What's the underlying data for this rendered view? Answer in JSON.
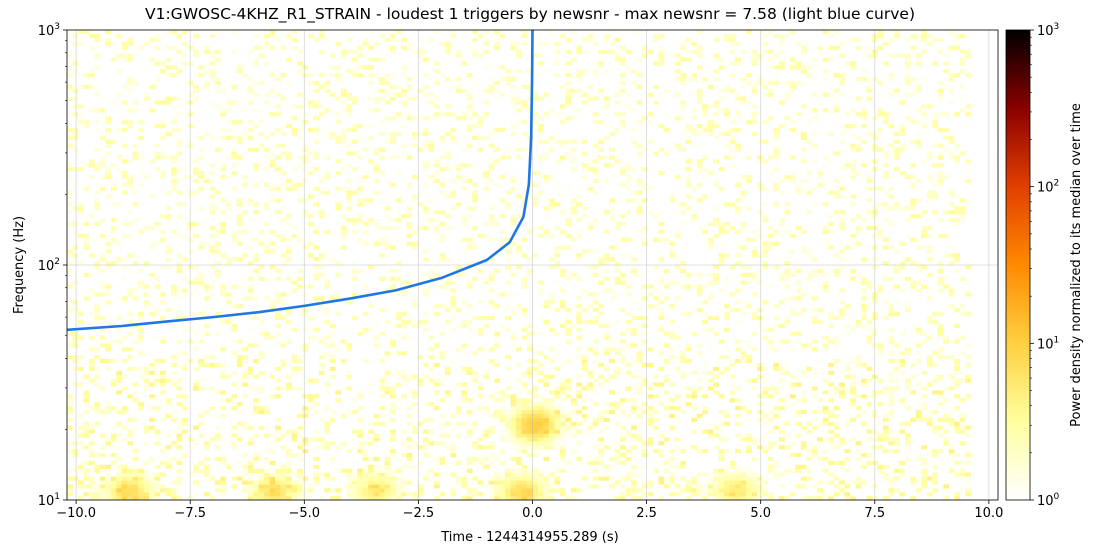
{
  "chart_data": {
    "type": "heatmap",
    "title": "V1:GWOSC-4KHZ_R1_STRAIN - loudest 1 triggers by newsnr - max newsnr = 7.58 (light blue curve)",
    "xlabel": "Time - 1244314955.289 (s)",
    "ylabel": "Frequency (Hz)",
    "xlim": [
      -10.2,
      10.2
    ],
    "ylim": [
      10,
      1000
    ],
    "yscale": "log",
    "x_ticks": [
      -10.0,
      -7.5,
      -5.0,
      -2.5,
      0.0,
      2.5,
      5.0,
      7.5,
      10.0
    ],
    "x_tick_labels": [
      "−10.0",
      "−7.5",
      "−5.0",
      "−2.5",
      "0.0",
      "2.5",
      "5.0",
      "7.5",
      "10.0"
    ],
    "y_ticks": [
      10,
      100,
      1000
    ],
    "y_tick_labels": [
      {
        "base": "10",
        "exp": "1"
      },
      {
        "base": "10",
        "exp": "2"
      },
      {
        "base": "10",
        "exp": "3"
      }
    ],
    "grid": true,
    "heatmap_extent": {
      "x": [
        -10.2,
        9.5
      ],
      "y": [
        10,
        1000
      ]
    },
    "colorbar": {
      "label": "Power density normalized to its median over time",
      "scale": "log",
      "range": [
        1,
        1000
      ],
      "ticks": [
        1,
        10,
        100,
        1000
      ],
      "tick_labels": [
        {
          "base": "10",
          "exp": "0"
        },
        {
          "base": "10",
          "exp": "1"
        },
        {
          "base": "10",
          "exp": "2"
        },
        {
          "base": "10",
          "exp": "3"
        }
      ],
      "colormap": [
        "#ffffff",
        "#ffffa0",
        "#ffd040",
        "#ff8a00",
        "#e04000",
        "#8a0000",
        "#000000"
      ]
    },
    "hotspots": [
      {
        "t": -8.9,
        "f": 10.8,
        "power": 6
      },
      {
        "t": -5.7,
        "f": 10.8,
        "power": 5
      },
      {
        "t": -3.5,
        "f": 11,
        "power": 4
      },
      {
        "t": -0.3,
        "f": 10.8,
        "power": 6
      },
      {
        "t": 0.0,
        "f": 21,
        "power": 9
      },
      {
        "t": 4.4,
        "f": 11,
        "power": 4
      }
    ],
    "series": [
      {
        "color": "#1f77e6",
        "points": [
          {
            "t": -10.2,
            "f": 53
          },
          {
            "t": -9.0,
            "f": 55
          },
          {
            "t": -8.0,
            "f": 57.5
          },
          {
            "t": -7.0,
            "f": 60
          },
          {
            "t": -6.0,
            "f": 63
          },
          {
            "t": -5.0,
            "f": 67
          },
          {
            "t": -4.0,
            "f": 72
          },
          {
            "t": -3.0,
            "f": 78
          },
          {
            "t": -2.0,
            "f": 88
          },
          {
            "t": -1.0,
            "f": 105
          },
          {
            "t": -0.5,
            "f": 125
          },
          {
            "t": -0.2,
            "f": 160
          },
          {
            "t": -0.08,
            "f": 220
          },
          {
            "t": -0.03,
            "f": 350
          },
          {
            "t": -0.01,
            "f": 600
          },
          {
            "t": 0.0,
            "f": 1000
          }
        ]
      }
    ]
  }
}
